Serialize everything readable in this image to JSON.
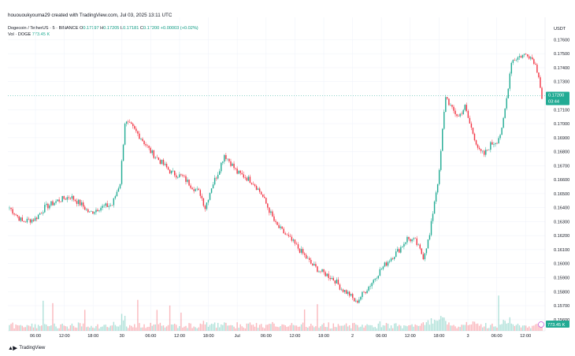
{
  "header": {
    "publish_line": "houououkyouma29 created with TradingView.com, Jul 03, 2025 13:11 UTC"
  },
  "legend": {
    "symbol": "Dogecoin / TetherUS · 5 · BINANCE",
    "o_label": "O",
    "o_value": "0.17197",
    "h_label": "H",
    "h_value": "0.17205",
    "l_label": "L",
    "l_value": "0.17181",
    "c_label": "C",
    "c_value": "0.17200",
    "change": "+0.00003 (+0.02%)",
    "vol_label": "Vol · DOGE",
    "vol_value": "773.45 K"
  },
  "footer": {
    "brand": "TradingView"
  },
  "colors": {
    "up": "#22ab94",
    "down": "#f23645",
    "price_line": "#22ab94",
    "grid": "#f0f3fa",
    "volume_mark": "#c75bdc"
  },
  "chart_data": {
    "type": "candlestick",
    "currency": "USDT",
    "ylim": [
      0.1552,
      0.1776
    ],
    "y_ticks": [
      "0.17600",
      "0.17500",
      "0.17400",
      "0.17300",
      "0.17100",
      "0.17000",
      "0.16900",
      "0.16800",
      "0.16700",
      "0.16600",
      "0.16500",
      "0.16400",
      "0.16300",
      "0.16200",
      "0.16100",
      "0.16000",
      "0.15900",
      "0.15800",
      "0.15700",
      "0.15600"
    ],
    "x_ticks": [
      "06:00",
      "12:00",
      "18:00",
      "30",
      "06:00",
      "12:00",
      "18:00",
      "Jul",
      "06:00",
      "12:00",
      "18:00",
      "2",
      "06:00",
      "12:00",
      "18:00",
      "3",
      "06:00",
      "12:00"
    ],
    "last_price": "0.17200",
    "countdown": "03:44",
    "last_volume": "773.45 K",
    "close_path": [
      [
        0,
        0.164
      ],
      [
        8,
        0.163
      ],
      [
        16,
        0.1632
      ],
      [
        22,
        0.164
      ],
      [
        30,
        0.1645
      ],
      [
        38,
        0.1648
      ],
      [
        45,
        0.1642
      ],
      [
        50,
        0.1636
      ],
      [
        56,
        0.164
      ],
      [
        64,
        0.1642
      ],
      [
        69,
        0.1658
      ],
      [
        72,
        0.1701
      ],
      [
        76,
        0.1698
      ],
      [
        82,
        0.169
      ],
      [
        88,
        0.168
      ],
      [
        95,
        0.1672
      ],
      [
        101,
        0.1665
      ],
      [
        108,
        0.1662
      ],
      [
        114,
        0.1655
      ],
      [
        119,
        0.165
      ],
      [
        122,
        0.164
      ],
      [
        126,
        0.1655
      ],
      [
        130,
        0.1665
      ],
      [
        134,
        0.1678
      ],
      [
        138,
        0.1672
      ],
      [
        142,
        0.1665
      ],
      [
        147,
        0.1662
      ],
      [
        152,
        0.1658
      ],
      [
        157,
        0.165
      ],
      [
        162,
        0.1638
      ],
      [
        166,
        0.1628
      ],
      [
        171,
        0.1622
      ],
      [
        177,
        0.1615
      ],
      [
        183,
        0.1607
      ],
      [
        188,
        0.16
      ],
      [
        193,
        0.1595
      ],
      [
        198,
        0.1592
      ],
      [
        203,
        0.1588
      ],
      [
        207,
        0.1582
      ],
      [
        212,
        0.1578
      ],
      [
        216,
        0.1572
      ],
      [
        220,
        0.1578
      ],
      [
        225,
        0.1585
      ],
      [
        231,
        0.1595
      ],
      [
        237,
        0.1603
      ],
      [
        243,
        0.161
      ],
      [
        248,
        0.1618
      ],
      [
        253,
        0.1616
      ],
      [
        258,
        0.1605
      ],
      [
        262,
        0.162
      ],
      [
        265,
        0.1645
      ],
      [
        268,
        0.1665
      ],
      [
        270,
        0.1695
      ],
      [
        272,
        0.172
      ],
      [
        276,
        0.171
      ],
      [
        280,
        0.1705
      ],
      [
        284,
        0.1712
      ],
      [
        287,
        0.17
      ],
      [
        290,
        0.169
      ],
      [
        293,
        0.168
      ],
      [
        296,
        0.1678
      ],
      [
        300,
        0.1685
      ],
      [
        304,
        0.1688
      ],
      [
        307,
        0.1695
      ],
      [
        310,
        0.1718
      ],
      [
        313,
        0.1745
      ],
      [
        318,
        0.1748
      ],
      [
        323,
        0.175
      ],
      [
        327,
        0.1745
      ],
      [
        330,
        0.1735
      ],
      [
        332,
        0.1718
      ]
    ]
  }
}
